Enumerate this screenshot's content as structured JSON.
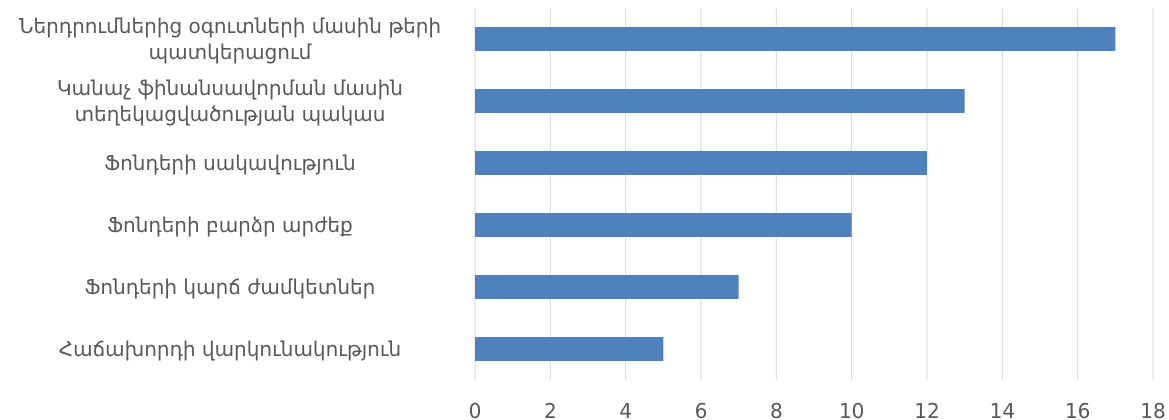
{
  "chart_data": {
    "type": "hbar",
    "categories": [
      "Ներդրումներից օգուտների մասին թերի պատկերացում",
      "Կանաչ ֆինանսավորման մասին տեղեկացվածության պակաս",
      "Ֆոնդերի սակավություն",
      "Ֆոնդերի բարձր արժեք",
      "Ֆոնդերի կարճ ժամկետներ",
      "Հաճախորդի վարկունակություն"
    ],
    "values": [
      17,
      13,
      12,
      10,
      7,
      5
    ],
    "color": "#4f81bd",
    "xlim": [
      0,
      18
    ],
    "xticks": [
      0,
      2,
      4,
      6,
      8,
      10,
      12,
      14,
      16,
      18
    ],
    "grid": true
  }
}
